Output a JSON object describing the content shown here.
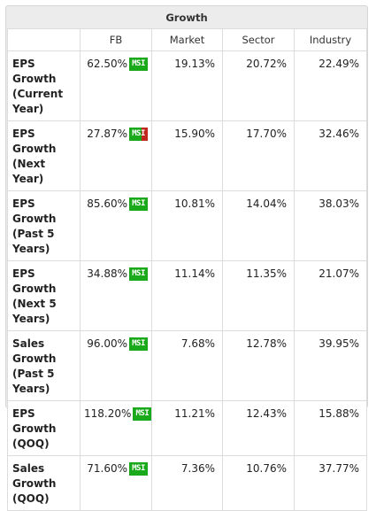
{
  "title": "Growth",
  "columns": [
    "",
    "FB",
    "Market",
    "Sector",
    "Industry"
  ],
  "msi_badge_text": "MSI",
  "msi_colors": {
    "good": "#1aa91a",
    "bad": "#c0281e"
  },
  "rows": [
    {
      "label": "EPS Growth (Current Year)",
      "fb": "62.50%",
      "msi_good_fraction": 1.0,
      "market": "19.13%",
      "sector": "20.72%",
      "industry": "22.49%"
    },
    {
      "label": "EPS Growth (Next Year)",
      "fb": "27.87%",
      "msi_good_fraction": 0.65,
      "market": "15.90%",
      "sector": "17.70%",
      "industry": "32.46%"
    },
    {
      "label": "EPS Growth (Past 5 Years)",
      "fb": "85.60%",
      "msi_good_fraction": 1.0,
      "market": "10.81%",
      "sector": "14.04%",
      "industry": "38.03%"
    },
    {
      "label": "EPS Growth (Next 5 Years)",
      "fb": "34.88%",
      "msi_good_fraction": 1.0,
      "market": "11.14%",
      "sector": "11.35%",
      "industry": "21.07%"
    },
    {
      "label": "Sales Growth (Past 5 Years)",
      "fb": "96.00%",
      "msi_good_fraction": 1.0,
      "market": "7.68%",
      "sector": "12.78%",
      "industry": "39.95%"
    },
    {
      "label": "EPS Growth (QOQ)",
      "fb": "118.20%",
      "msi_good_fraction": 1.0,
      "market": "11.21%",
      "sector": "12.43%",
      "industry": "15.88%"
    },
    {
      "label": "Sales Growth (QOQ)",
      "fb": "71.60%",
      "msi_good_fraction": 1.0,
      "market": "7.36%",
      "sector": "10.76%",
      "industry": "37.77%"
    }
  ]
}
